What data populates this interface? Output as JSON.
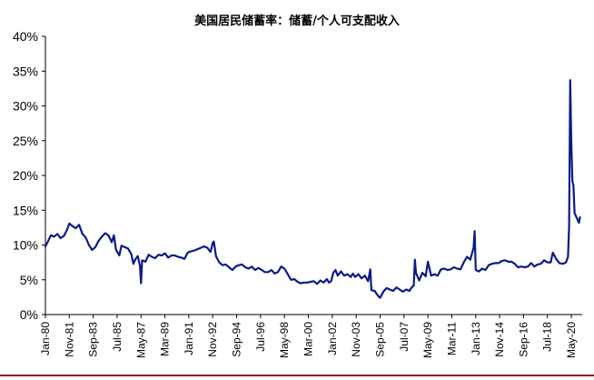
{
  "chart_data": {
    "type": "line",
    "title": "美国居民储蓄率：储蓄/个人可支配收入",
    "xlabel": "",
    "ylabel": "",
    "ylim": [
      0,
      40
    ],
    "x_range": [
      "1980-01",
      "2021-03"
    ],
    "y_ticks": [
      "0%",
      "5%",
      "10%",
      "15%",
      "20%",
      "25%",
      "30%",
      "35%",
      "40%"
    ],
    "x_ticks": [
      "Jan-80",
      "Nov-81",
      "Sep-83",
      "Jul-85",
      "May-87",
      "Mar-89",
      "Jan-91",
      "Nov-92",
      "Sep-94",
      "Jul-96",
      "May-98",
      "Mar-00",
      "Jan-02",
      "Nov-03",
      "Sep-05",
      "Jul-07",
      "May-09",
      "Mar-11",
      "Jan-13",
      "Nov-14",
      "Sep-16",
      "Jul-18",
      "May-20"
    ],
    "grid": false,
    "legend": "none",
    "color": "#0b1a8a",
    "series": [
      {
        "name": "",
        "points": [
          [
            "1980-01",
            9.8
          ],
          [
            "1980-03",
            10.4
          ],
          [
            "1980-06",
            11.4
          ],
          [
            "1980-09",
            11.2
          ],
          [
            "1980-12",
            11.6
          ],
          [
            "1981-03",
            11.0
          ],
          [
            "1981-06",
            11.3
          ],
          [
            "1981-09",
            12.2
          ],
          [
            "1981-11",
            13.1
          ],
          [
            "1982-02",
            12.7
          ],
          [
            "1982-05",
            12.4
          ],
          [
            "1982-08",
            12.9
          ],
          [
            "1982-11",
            11.6
          ],
          [
            "1983-02",
            11.1
          ],
          [
            "1983-05",
            10.0
          ],
          [
            "1983-08",
            9.3
          ],
          [
            "1983-11",
            9.7
          ],
          [
            "1984-02",
            10.6
          ],
          [
            "1984-05",
            11.2
          ],
          [
            "1984-08",
            11.7
          ],
          [
            "1984-11",
            11.4
          ],
          [
            "1985-02",
            10.4
          ],
          [
            "1985-04",
            11.4
          ],
          [
            "1985-06",
            9.3
          ],
          [
            "1985-09",
            8.5
          ],
          [
            "1985-11",
            9.9
          ],
          [
            "1986-02",
            9.7
          ],
          [
            "1986-05",
            9.5
          ],
          [
            "1986-08",
            8.7
          ],
          [
            "1986-10",
            7.3
          ],
          [
            "1986-12",
            8.0
          ],
          [
            "1987-02",
            8.4
          ],
          [
            "1987-04",
            7.0
          ],
          [
            "1987-05",
            4.5
          ],
          [
            "1987-06",
            7.8
          ],
          [
            "1987-09",
            7.6
          ],
          [
            "1987-12",
            8.6
          ],
          [
            "1988-03",
            8.3
          ],
          [
            "1988-06",
            8.1
          ],
          [
            "1988-09",
            8.6
          ],
          [
            "1988-12",
            8.5
          ],
          [
            "1989-03",
            8.8
          ],
          [
            "1989-06",
            8.2
          ],
          [
            "1989-09",
            8.5
          ],
          [
            "1989-12",
            8.5
          ],
          [
            "1990-03",
            8.3
          ],
          [
            "1990-06",
            8.2
          ],
          [
            "1990-09",
            8.0
          ],
          [
            "1990-12",
            8.9
          ],
          [
            "1991-03",
            9.1
          ],
          [
            "1991-06",
            9.2
          ],
          [
            "1991-09",
            9.4
          ],
          [
            "1991-12",
            9.6
          ],
          [
            "1992-03",
            9.8
          ],
          [
            "1992-06",
            9.6
          ],
          [
            "1992-09",
            9.0
          ],
          [
            "1992-11",
            10.3
          ],
          [
            "1992-12",
            10.5
          ],
          [
            "1993-02",
            8.4
          ],
          [
            "1993-05",
            7.5
          ],
          [
            "1993-08",
            7.1
          ],
          [
            "1993-11",
            7.2
          ],
          [
            "1994-02",
            6.8
          ],
          [
            "1994-05",
            6.4
          ],
          [
            "1994-08",
            6.9
          ],
          [
            "1994-11",
            7.1
          ],
          [
            "1995-02",
            7.2
          ],
          [
            "1995-05",
            6.8
          ],
          [
            "1995-08",
            6.6
          ],
          [
            "1995-11",
            6.9
          ],
          [
            "1996-02",
            6.4
          ],
          [
            "1996-05",
            6.7
          ],
          [
            "1996-08",
            6.4
          ],
          [
            "1996-11",
            6.1
          ],
          [
            "1997-02",
            6.1
          ],
          [
            "1997-05",
            6.4
          ],
          [
            "1997-08",
            5.9
          ],
          [
            "1997-11",
            6.1
          ],
          [
            "1998-02",
            6.9
          ],
          [
            "1998-05",
            6.6
          ],
          [
            "1998-08",
            5.8
          ],
          [
            "1998-11",
            5.0
          ],
          [
            "1999-02",
            5.1
          ],
          [
            "1999-05",
            4.7
          ],
          [
            "1999-08",
            4.5
          ],
          [
            "1999-11",
            4.6
          ],
          [
            "2000-02",
            4.6
          ],
          [
            "2000-05",
            4.7
          ],
          [
            "2000-08",
            4.8
          ],
          [
            "2000-11",
            4.4
          ],
          [
            "2001-02",
            4.9
          ],
          [
            "2001-05",
            4.6
          ],
          [
            "2001-08",
            5.1
          ],
          [
            "2001-10",
            4.6
          ],
          [
            "2001-12",
            4.8
          ],
          [
            "2002-02",
            6.0
          ],
          [
            "2002-04",
            6.4
          ],
          [
            "2002-06",
            5.6
          ],
          [
            "2002-09",
            6.2
          ],
          [
            "2002-12",
            5.6
          ],
          [
            "2003-03",
            5.8
          ],
          [
            "2003-06",
            5.4
          ],
          [
            "2003-08",
            5.9
          ],
          [
            "2003-10",
            5.4
          ],
          [
            "2004-01",
            5.8
          ],
          [
            "2004-04",
            5.2
          ],
          [
            "2004-07",
            5.6
          ],
          [
            "2004-10",
            4.8
          ],
          [
            "2004-12",
            6.5
          ],
          [
            "2005-01",
            3.5
          ],
          [
            "2005-04",
            3.4
          ],
          [
            "2005-07",
            2.7
          ],
          [
            "2005-09",
            2.4
          ],
          [
            "2005-12",
            3.3
          ],
          [
            "2006-03",
            3.8
          ],
          [
            "2006-06",
            3.6
          ],
          [
            "2006-09",
            3.4
          ],
          [
            "2006-12",
            3.9
          ],
          [
            "2007-03",
            3.6
          ],
          [
            "2007-06",
            3.3
          ],
          [
            "2007-09",
            3.6
          ],
          [
            "2007-12",
            3.4
          ],
          [
            "2008-02",
            3.9
          ],
          [
            "2008-04",
            4.2
          ],
          [
            "2008-05",
            7.9
          ],
          [
            "2008-06",
            6.0
          ],
          [
            "2008-09",
            4.9
          ],
          [
            "2008-12",
            6.0
          ],
          [
            "2009-03",
            5.5
          ],
          [
            "2009-05",
            7.6
          ],
          [
            "2009-08",
            5.6
          ],
          [
            "2009-11",
            5.8
          ],
          [
            "2010-02",
            5.6
          ],
          [
            "2010-05",
            6.5
          ],
          [
            "2010-08",
            6.6
          ],
          [
            "2010-11",
            6.4
          ],
          [
            "2011-02",
            6.5
          ],
          [
            "2011-05",
            6.8
          ],
          [
            "2011-08",
            6.6
          ],
          [
            "2011-11",
            6.5
          ],
          [
            "2012-02",
            7.5
          ],
          [
            "2012-05",
            8.3
          ],
          [
            "2012-08",
            7.9
          ],
          [
            "2012-11",
            9.6
          ],
          [
            "2012-12",
            12.0
          ],
          [
            "2013-01",
            6.4
          ],
          [
            "2013-04",
            6.2
          ],
          [
            "2013-07",
            6.6
          ],
          [
            "2013-10",
            6.4
          ],
          [
            "2014-01",
            7.1
          ],
          [
            "2014-04",
            7.3
          ],
          [
            "2014-07",
            7.4
          ],
          [
            "2014-10",
            7.4
          ],
          [
            "2015-01",
            7.7
          ],
          [
            "2015-04",
            7.8
          ],
          [
            "2015-07",
            7.6
          ],
          [
            "2015-10",
            7.6
          ],
          [
            "2016-01",
            7.3
          ],
          [
            "2016-04",
            6.8
          ],
          [
            "2016-07",
            6.9
          ],
          [
            "2016-10",
            6.8
          ],
          [
            "2017-01",
            6.9
          ],
          [
            "2017-04",
            7.4
          ],
          [
            "2017-07",
            6.9
          ],
          [
            "2017-10",
            7.2
          ],
          [
            "2018-01",
            7.3
          ],
          [
            "2018-04",
            7.8
          ],
          [
            "2018-07",
            7.5
          ],
          [
            "2018-10",
            7.5
          ],
          [
            "2018-12",
            8.9
          ],
          [
            "2019-03",
            8.0
          ],
          [
            "2019-06",
            7.4
          ],
          [
            "2019-09",
            7.3
          ],
          [
            "2019-12",
            7.5
          ],
          [
            "2020-02",
            8.3
          ],
          [
            "2020-03",
            12.8
          ],
          [
            "2020-04",
            33.7
          ],
          [
            "2020-05",
            24.8
          ],
          [
            "2020-06",
            19.2
          ],
          [
            "2020-07",
            18.5
          ],
          [
            "2020-08",
            14.6
          ],
          [
            "2020-10",
            13.9
          ],
          [
            "2020-12",
            13.2
          ],
          [
            "2021-01",
            14.0
          ]
        ]
      }
    ]
  }
}
